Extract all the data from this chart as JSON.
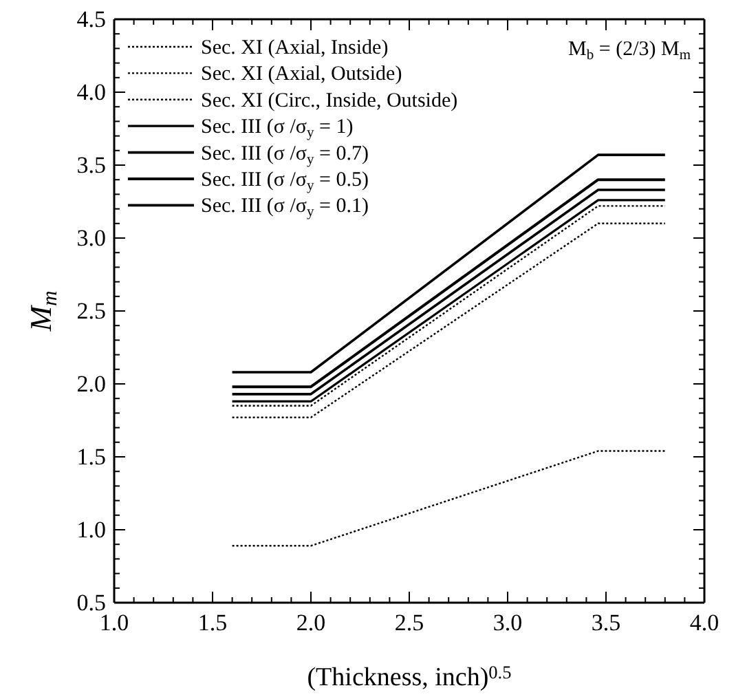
{
  "chart_data": {
    "type": "line",
    "xlabel": "(Thickness, inch)$^{0.5}$",
    "ylabel": "M$_{m}$",
    "xlim": [
      1.0,
      4.0
    ],
    "ylim": [
      0.5,
      4.5
    ],
    "xticks": [
      {
        "value": 1,
        "label": "1.0"
      },
      {
        "value": 1.1,
        "label": null
      },
      {
        "value": 1.2,
        "label": null
      },
      {
        "value": 1.3,
        "label": null
      },
      {
        "value": 1.4,
        "label": null
      },
      1.5,
      {
        "value": 1.6,
        "label": null
      },
      {
        "value": 1.7,
        "label": null
      },
      {
        "value": 1.8,
        "label": null
      },
      {
        "value": 1.9,
        "label": null
      },
      {
        "value": 2,
        "label": "2.0"
      },
      {
        "value": 2.1,
        "label": null
      },
      {
        "value": 2.2,
        "label": null
      },
      {
        "value": 2.3,
        "label": null
      },
      {
        "value": 2.4,
        "label": null
      },
      2.5,
      {
        "value": 2.6,
        "label": null
      },
      {
        "value": 2.7,
        "label": null
      },
      {
        "value": 2.8,
        "label": null
      },
      {
        "value": 2.9,
        "label": null
      },
      {
        "value": 3,
        "label": "3.0"
      },
      {
        "value": 3.1,
        "label": null
      },
      {
        "value": 3.2,
        "label": null
      },
      {
        "value": 3.3,
        "label": null
      },
      {
        "value": 3.4,
        "label": null
      },
      3.5,
      {
        "value": 3.6,
        "label": null
      },
      {
        "value": 3.7,
        "label": null
      },
      {
        "value": 3.8,
        "label": null
      },
      {
        "value": 3.9,
        "label": null
      },
      {
        "value": 4,
        "label": "4.0"
      }
    ],
    "yticks": [
      0.5,
      {
        "value": 0.6,
        "label": null
      },
      {
        "value": 0.7,
        "label": null
      },
      {
        "value": 0.8,
        "label": null
      },
      {
        "value": 0.9,
        "label": null
      },
      {
        "value": 1,
        "label": "1.0"
      },
      {
        "value": 1.1,
        "label": null
      },
      {
        "value": 1.2,
        "label": null
      },
      {
        "value": 1.3,
        "label": null
      },
      {
        "value": 1.4,
        "label": null
      },
      1.5,
      {
        "value": 1.6,
        "label": null
      },
      {
        "value": 1.7,
        "label": null
      },
      {
        "value": 1.8,
        "label": null
      },
      {
        "value": 1.9,
        "label": null
      },
      {
        "value": 2,
        "label": "2.0"
      },
      {
        "value": 2.1,
        "label": null
      },
      {
        "value": 2.2,
        "label": null
      },
      {
        "value": 2.3,
        "label": null
      },
      {
        "value": 2.4,
        "label": null
      },
      2.5,
      {
        "value": 2.6,
        "label": null
      },
      {
        "value": 2.7,
        "label": null
      },
      {
        "value": 2.8,
        "label": null
      },
      {
        "value": 2.9,
        "label": null
      },
      {
        "value": 3,
        "label": "3.0"
      },
      {
        "value": 3.1,
        "label": null
      },
      {
        "value": 3.2,
        "label": null
      },
      {
        "value": 3.3,
        "label": null
      },
      {
        "value": 3.4,
        "label": null
      },
      3.5,
      {
        "value": 3.6,
        "label": null
      },
      {
        "value": 3.7,
        "label": null
      },
      {
        "value": 3.8,
        "label": null
      },
      {
        "value": 3.9,
        "label": null
      },
      {
        "value": 4,
        "label": "4.0"
      },
      {
        "value": 4.1,
        "label": null
      },
      {
        "value": 4.2,
        "label": null
      },
      {
        "value": 4.3,
        "label": null
      },
      {
        "value": 4.4,
        "label": null
      },
      4.5
    ],
    "x": [
      1.6,
      2.0,
      3.46,
      3.8
    ],
    "series": [
      {
        "name": "Sec. XI (Axial, Inside)",
        "color": "#000000",
        "line_style": "dotted",
        "values": [
          1.77,
          1.77,
          3.1,
          3.1
        ]
      },
      {
        "name": "Sec. XI (Axial, Outside)",
        "color": "#000000",
        "line_style": "dotted",
        "values": [
          1.85,
          1.85,
          3.22,
          3.22
        ]
      },
      {
        "name": "Sec. XI (Circ., Inside, Outside)",
        "color": "#000000",
        "line_style": "dotted",
        "values": [
          0.89,
          0.89,
          1.54,
          1.54
        ]
      },
      {
        "name": "Sec. III (σ /σ$_{y}$ = 1)",
        "color": "#000000",
        "line_style": "solid",
        "values": [
          1.88,
          1.88,
          3.26,
          3.26
        ]
      },
      {
        "name": "Sec. III (σ /σ$_{y}$ = 0.7)",
        "color": "#000000",
        "line_style": "solid",
        "values": [
          1.93,
          1.93,
          3.33,
          3.33
        ]
      },
      {
        "name": "Sec. III (σ /σ$_{y}$ = 0.5)",
        "color": "#000000",
        "line_style": "solid",
        "values": [
          1.98,
          1.98,
          3.4,
          3.4
        ]
      },
      {
        "name": "Sec. III (σ /σ$_{y}$ = 0.1)",
        "color": "#000000",
        "line_style": "solid",
        "values": [
          2.08,
          2.08,
          3.57,
          3.57
        ]
      }
    ],
    "legend": "top left",
    "grid": false,
    "marker": "none",
    "annotations": [
      "M$_{b}$ = (2/3) M$_{m}$"
    ]
  }
}
